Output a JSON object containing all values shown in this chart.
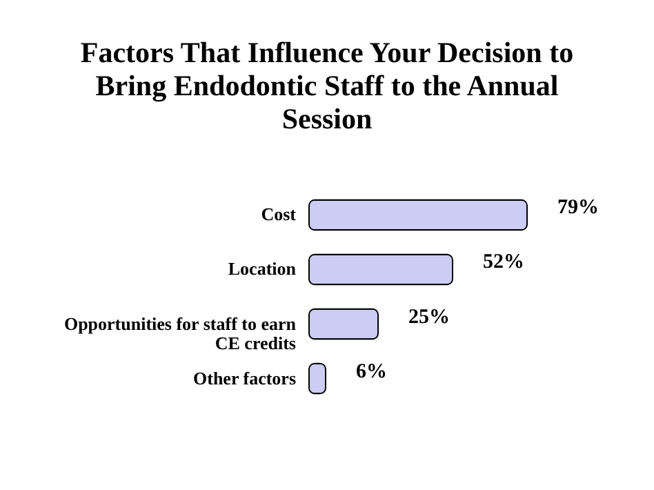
{
  "chart_data": {
    "type": "bar",
    "orientation": "horizontal",
    "title": "Factors That Influence Your Decision to Bring Endodontic Staff to the Annual Session",
    "categories": [
      "Cost",
      "Location",
      "Opportunities for staff to earn CE credits",
      "Other factors"
    ],
    "values": [
      79,
      52,
      25,
      6
    ],
    "value_labels": [
      "79%",
      "52%",
      "25%",
      "6%"
    ],
    "color": "#ccccf5"
  }
}
